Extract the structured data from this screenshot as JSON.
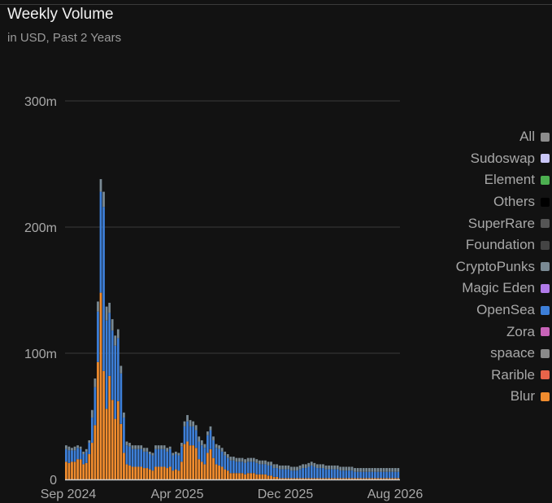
{
  "chart_data": {
    "type": "bar",
    "title": "Weekly Volume",
    "subtitle": "in USD, Past 2 Years",
    "y_ticks": [
      {
        "value": 0,
        "label": "0"
      },
      {
        "value": 100,
        "label": "100m"
      },
      {
        "value": 200,
        "label": "200m"
      },
      {
        "value": 300,
        "label": "300m"
      }
    ],
    "x_tick_labels": [
      "Sep 2024",
      "Apr 2025",
      "Dec 2025",
      "Aug 2026"
    ],
    "ylim": [
      0,
      300
    ],
    "grid": true,
    "legend_position": "right",
    "legend": [
      {
        "name": "All",
        "color": "#8c8c8c"
      },
      {
        "name": "Sudoswap",
        "color": "#c9c6f7"
      },
      {
        "name": "Element",
        "color": "#4caf50"
      },
      {
        "name": "Others",
        "color": "#000000"
      },
      {
        "name": "SuperRare",
        "color": "#555555"
      },
      {
        "name": "Foundation",
        "color": "#444444"
      },
      {
        "name": "CryptoPunks",
        "color": "#7a8a94"
      },
      {
        "name": "Magic Eden",
        "color": "#b07ae8"
      },
      {
        "name": "OpenSea",
        "color": "#3d7fd8"
      },
      {
        "name": "Zora",
        "color": "#c763b8"
      },
      {
        "name": "spaace",
        "color": "#8a8a8a"
      },
      {
        "name": "Rarible",
        "color": "#e8644a"
      },
      {
        "name": "Blur",
        "color": "#f08c2e"
      }
    ],
    "stack_order": [
      "Blur",
      "OpenSea",
      "CryptoPunks"
    ],
    "series": [
      {
        "name": "Blur",
        "values": [
          14,
          13,
          14,
          14,
          16,
          16,
          12,
          13,
          20,
          29,
          43,
          93,
          148,
          86,
          56,
          82,
          63,
          48,
          62,
          44,
          21,
          12,
          11,
          10,
          10,
          10,
          10,
          9,
          9,
          8,
          7,
          10,
          10,
          10,
          10,
          9,
          10,
          7,
          8,
          7,
          14,
          28,
          30,
          27,
          27,
          25,
          16,
          14,
          12,
          21,
          24,
          17,
          12,
          11,
          10,
          8,
          7,
          5,
          5,
          5,
          5,
          5,
          4,
          5,
          5,
          5,
          4,
          4,
          4,
          4,
          3,
          3,
          2,
          2,
          1,
          1,
          1,
          1,
          1,
          1,
          1,
          1,
          1,
          1,
          1,
          1,
          1,
          1,
          1,
          1,
          1,
          1,
          1,
          1,
          1,
          1,
          1,
          1,
          1,
          1,
          1,
          1,
          1,
          1,
          1,
          1,
          1,
          1,
          1,
          1,
          1,
          1,
          1,
          1,
          1,
          1
        ]
      },
      {
        "name": "OpenSea",
        "values": [
          10,
          10,
          9,
          9,
          9,
          8,
          8,
          9,
          9,
          20,
          30,
          40,
          80,
          130,
          70,
          50,
          55,
          58,
          50,
          40,
          28,
          15,
          15,
          14,
          14,
          14,
          14,
          13,
          13,
          12,
          12,
          14,
          14,
          14,
          14,
          13,
          14,
          12,
          12,
          12,
          12,
          14,
          16,
          15,
          15,
          14,
          14,
          13,
          13,
          14,
          15,
          14,
          13,
          13,
          12,
          11,
          10,
          10,
          10,
          9,
          9,
          9,
          9,
          9,
          9,
          9,
          9,
          8,
          8,
          8,
          8,
          8,
          7,
          7,
          7,
          7,
          7,
          7,
          6,
          6,
          6,
          7,
          8,
          8,
          9,
          10,
          9,
          8,
          8,
          8,
          7,
          7,
          7,
          7,
          7,
          6,
          6,
          6,
          6,
          6,
          5,
          5,
          5,
          5,
          5,
          5,
          5,
          5,
          5,
          5,
          5,
          5,
          5,
          5,
          5,
          5,
          5
        ]
      },
      {
        "name": "CryptoPunks",
        "values": [
          3,
          3,
          2,
          3,
          2,
          2,
          2,
          2,
          2,
          6,
          7,
          8,
          10,
          12,
          11,
          8,
          9,
          8,
          7,
          6,
          4,
          3,
          3,
          3,
          3,
          3,
          3,
          3,
          3,
          2,
          2,
          3,
          3,
          3,
          3,
          3,
          2,
          2,
          2,
          2,
          3,
          4,
          5,
          5,
          4,
          4,
          4,
          4,
          3,
          3,
          3,
          3,
          3,
          3,
          3,
          3,
          3,
          3,
          3,
          3,
          3,
          3,
          3,
          3,
          3,
          3,
          3,
          3,
          3,
          3,
          3,
          3,
          3,
          3,
          3,
          3,
          3,
          3,
          3,
          3,
          3,
          3,
          3,
          3,
          3,
          3,
          3,
          3,
          3,
          3,
          3,
          3,
          3,
          3,
          3,
          3,
          3,
          3,
          3,
          3,
          3,
          3,
          3,
          3,
          3,
          3,
          3,
          3,
          3,
          3,
          3,
          3,
          3,
          3,
          3,
          3,
          3
        ]
      }
    ]
  }
}
